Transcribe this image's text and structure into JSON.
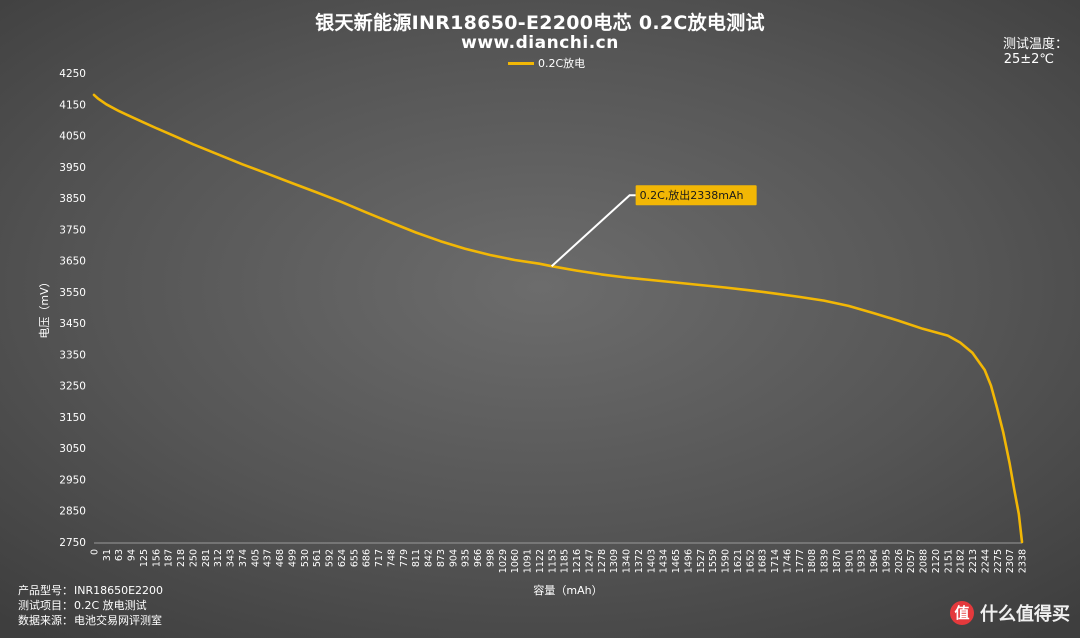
{
  "header": {
    "title": "银天新能源INR18650-E2200电芯 0.2C放电测试",
    "subtitle": "www.dianchi.cn",
    "temp_label": "测试温度：",
    "temp_value": "25±2℃"
  },
  "legend": {
    "label": "0.2C放电",
    "color": "#f2b705"
  },
  "annotation": {
    "text": "0.2C,放出2338mAh",
    "color": "#f2b705"
  },
  "info": {
    "model_label": "产品型号：",
    "model_value": "INR18650E2200",
    "item_label": "测试项目：",
    "item_value": "0.2C 放电测试",
    "source_label": "数据来源：",
    "source_value": "电池交易网评测室"
  },
  "watermark": {
    "logo": "值",
    "text": "什么值得买"
  },
  "chart_data": {
    "type": "line",
    "title": "银天新能源INR18650-E2200电芯 0.2C放电测试",
    "xlabel": "容量（mAh）",
    "ylabel": "电压（mV）",
    "ylim": [
      2750,
      4250
    ],
    "yticks": [
      2750,
      2850,
      2950,
      3050,
      3150,
      3250,
      3350,
      3450,
      3550,
      3650,
      3750,
      3850,
      3950,
      4050,
      4150,
      4250
    ],
    "xticks": [
      "0",
      "31",
      "63",
      "94",
      "125",
      "156",
      "187",
      "218",
      "250",
      "281",
      "312",
      "343",
      "374",
      "405",
      "437",
      "468",
      "499",
      "530",
      "561",
      "592",
      "624",
      "655",
      "686",
      "717",
      "748",
      "779",
      "811",
      "842",
      "873",
      "904",
      "935",
      "966",
      "998",
      "1029",
      "1060",
      "1091",
      "1122",
      "1153",
      "1185",
      "1216",
      "1247",
      "1278",
      "1309",
      "1340",
      "1372",
      "1403",
      "1434",
      "1465",
      "1496",
      "1527",
      "1559",
      "1590",
      "1621",
      "1652",
      "1683",
      "1714",
      "1746",
      "1777",
      "1808",
      "1839",
      "1870",
      "1901",
      "1933",
      "1964",
      "1995",
      "2026",
      "2057",
      "2088",
      "2120",
      "2151",
      "2182",
      "2213",
      "2244",
      "2275",
      "2307",
      "2338"
    ],
    "xlim": [
      0,
      2338
    ],
    "grid": false,
    "legend_position": "top-center",
    "series": [
      {
        "name": "0.2C放电",
        "color": "#f2b705",
        "x": [
          0,
          10,
          31,
          63,
          94,
          125,
          156,
          187,
          218,
          250,
          312,
          374,
          437,
          499,
          561,
          624,
          686,
          748,
          811,
          873,
          935,
          998,
          1060,
          1122,
          1153,
          1216,
          1278,
          1340,
          1403,
          1465,
          1527,
          1590,
          1652,
          1714,
          1777,
          1839,
          1901,
          1964,
          2026,
          2088,
          2151,
          2182,
          2213,
          2244,
          2260,
          2275,
          2291,
          2307,
          2318,
          2330,
          2338
        ],
        "y": [
          4180,
          4168,
          4150,
          4128,
          4110,
          4092,
          4074,
          4057,
          4040,
          4022,
          3990,
          3958,
          3928,
          3898,
          3868,
          3837,
          3804,
          3772,
          3740,
          3712,
          3688,
          3668,
          3652,
          3640,
          3632,
          3618,
          3606,
          3596,
          3588,
          3580,
          3572,
          3564,
          3555,
          3545,
          3534,
          3522,
          3505,
          3482,
          3458,
          3432,
          3410,
          3388,
          3355,
          3300,
          3250,
          3180,
          3100,
          3000,
          2920,
          2840,
          2750
        ]
      }
    ]
  }
}
